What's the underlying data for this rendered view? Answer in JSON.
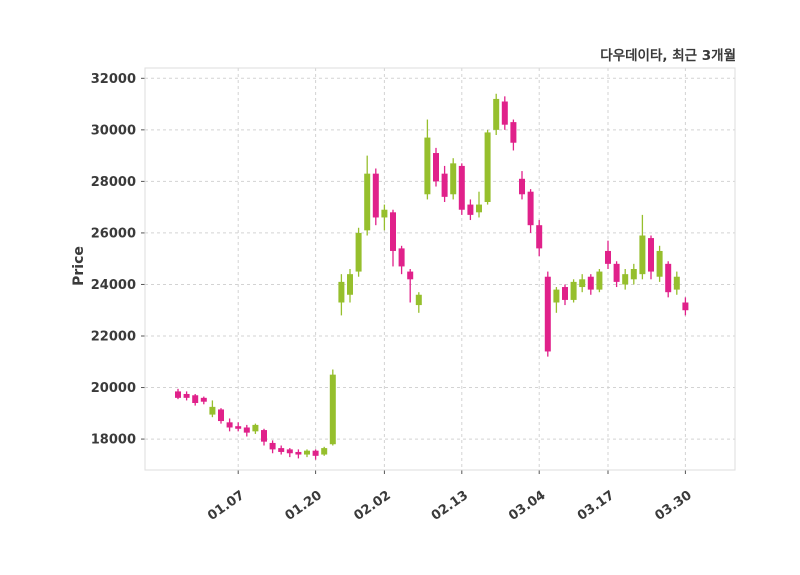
{
  "header": {
    "title": "다우데이타, 최근 3개월"
  },
  "chart_data": {
    "type": "candlestick",
    "title": "다우데이타, 최근 3개월",
    "ylabel": "Price",
    "ylim": [
      16800,
      32400
    ],
    "yticks": [
      18000,
      20000,
      22000,
      24000,
      26000,
      28000,
      30000,
      32000
    ],
    "xticks": [
      {
        "index": 7,
        "label": "01.07"
      },
      {
        "index": 16,
        "label": "01.20"
      },
      {
        "index": 24,
        "label": "02.02"
      },
      {
        "index": 33,
        "label": "02.13"
      },
      {
        "index": 42,
        "label": "03.04"
      },
      {
        "index": 50,
        "label": "03.17"
      },
      {
        "index": 59,
        "label": "03.30"
      }
    ],
    "up_color": "#96bf2d",
    "down_color": "#e0218a",
    "grid_color": "#d3d3d3",
    "text_color": "#3a3a3a",
    "grid": true,
    "legend": "none",
    "candles_format": "[open, high, low, close]",
    "candles": [
      [
        19850,
        19950,
        19550,
        19600
      ],
      [
        19750,
        19850,
        19500,
        19600
      ],
      [
        19700,
        19750,
        19300,
        19400
      ],
      [
        19600,
        19650,
        19350,
        19450
      ],
      [
        18950,
        19500,
        18850,
        19250
      ],
      [
        19150,
        19200,
        18600,
        18700
      ],
      [
        18650,
        18800,
        18300,
        18450
      ],
      [
        18500,
        18650,
        18300,
        18400
      ],
      [
        18450,
        18550,
        18100,
        18250
      ],
      [
        18300,
        18600,
        18200,
        18550
      ],
      [
        18350,
        18400,
        17750,
        17900
      ],
      [
        17850,
        17950,
        17450,
        17600
      ],
      [
        17650,
        17750,
        17400,
        17500
      ],
      [
        17600,
        17650,
        17300,
        17450
      ],
      [
        17500,
        17600,
        17250,
        17400
      ],
      [
        17400,
        17600,
        17300,
        17550
      ],
      [
        17550,
        17600,
        17200,
        17350
      ],
      [
        17400,
        17700,
        17350,
        17650
      ],
      [
        17800,
        20700,
        17750,
        20500
      ],
      [
        23300,
        24400,
        22800,
        24100
      ],
      [
        23600,
        24600,
        23300,
        24400
      ],
      [
        24500,
        26200,
        24300,
        26000
      ],
      [
        26100,
        29000,
        25900,
        28300
      ],
      [
        28300,
        28500,
        26300,
        26600
      ],
      [
        26600,
        27100,
        26100,
        26900
      ],
      [
        26800,
        26900,
        24700,
        25300
      ],
      [
        25400,
        25500,
        24400,
        24700
      ],
      [
        24500,
        24600,
        23300,
        24200
      ],
      [
        23200,
        23700,
        22900,
        23600
      ],
      [
        27500,
        30400,
        27300,
        29700
      ],
      [
        29100,
        29300,
        27800,
        28000
      ],
      [
        28300,
        28600,
        27200,
        27400
      ],
      [
        27500,
        28900,
        27300,
        28700
      ],
      [
        28600,
        28700,
        26700,
        26900
      ],
      [
        27100,
        27300,
        26500,
        26700
      ],
      [
        26800,
        27600,
        26600,
        27100
      ],
      [
        27200,
        30000,
        27100,
        29900
      ],
      [
        30000,
        31400,
        29800,
        31200
      ],
      [
        31100,
        31300,
        30000,
        30200
      ],
      [
        30300,
        30400,
        29200,
        29500
      ],
      [
        28100,
        28400,
        27300,
        27500
      ],
      [
        27600,
        27700,
        26000,
        26300
      ],
      [
        26300,
        26500,
        25100,
        25400
      ],
      [
        24300,
        24500,
        21200,
        21400
      ],
      [
        23300,
        23900,
        22900,
        23800
      ],
      [
        23900,
        24000,
        23200,
        23400
      ],
      [
        23400,
        24200,
        23300,
        24100
      ],
      [
        23900,
        24400,
        23700,
        24200
      ],
      [
        24300,
        24400,
        23600,
        23800
      ],
      [
        23800,
        24600,
        23700,
        24500
      ],
      [
        25300,
        25700,
        24600,
        24800
      ],
      [
        24800,
        24900,
        23900,
        24100
      ],
      [
        24000,
        24600,
        23800,
        24400
      ],
      [
        24200,
        24800,
        24000,
        24600
      ],
      [
        24400,
        26700,
        24200,
        25900
      ],
      [
        25800,
        25900,
        24200,
        24500
      ],
      [
        24300,
        25500,
        24100,
        25300
      ],
      [
        24800,
        24900,
        23500,
        23700
      ],
      [
        23800,
        24500,
        23600,
        24300
      ],
      [
        23300,
        23500,
        22800,
        23000
      ]
    ]
  }
}
